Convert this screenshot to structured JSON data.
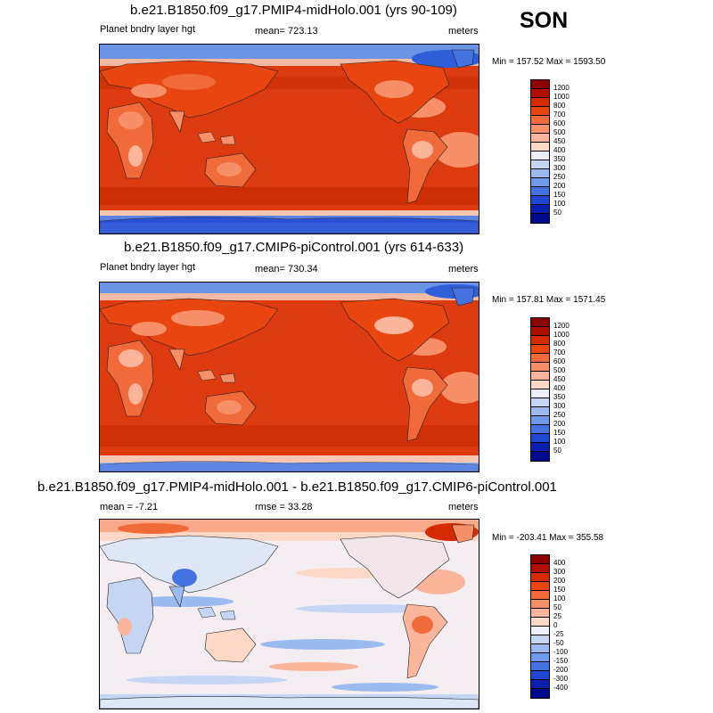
{
  "season": "SON",
  "panels": [
    {
      "title": "b.e21.B1850.f09_g17.PMIP4-midHolo.001 (yrs 90-109)",
      "left_label": "Planet bndry layer hgt",
      "center_label": "mean= 723.13",
      "right_label": "meters",
      "minmax": "Min = 157.52 Max = 1593.50",
      "colorbar": {
        "labels": [
          "1200",
          "1000",
          "800",
          "700",
          "600",
          "500",
          "450",
          "400",
          "350",
          "300",
          "250",
          "200",
          "150",
          "100",
          "50"
        ],
        "colors": [
          "#8b0000",
          "#b00e00",
          "#d62a00",
          "#e84510",
          "#f06a3a",
          "#f79069",
          "#fbb59a",
          "#fdd8c6",
          "#eeeef8",
          "#c4d6f4",
          "#9bbaf0",
          "#6f99ea",
          "#4472e0",
          "#1e47d4",
          "#0a1eb0",
          "#000a8a"
        ]
      }
    },
    {
      "title": "b.e21.B1850.f09_g17.CMIP6-piControl.001 (yrs 614-633)",
      "left_label": "Planet bndry layer hgt",
      "center_label": "mean= 730.34",
      "right_label": "meters",
      "minmax": "Min = 157.81 Max = 1571.45",
      "colorbar": {
        "labels": [
          "1200",
          "1000",
          "800",
          "700",
          "600",
          "500",
          "450",
          "400",
          "350",
          "300",
          "250",
          "200",
          "150",
          "100",
          "50"
        ],
        "colors": [
          "#8b0000",
          "#b00e00",
          "#d62a00",
          "#e84510",
          "#f06a3a",
          "#f79069",
          "#fbb59a",
          "#fdd8c6",
          "#eeeef8",
          "#c4d6f4",
          "#9bbaf0",
          "#6f99ea",
          "#4472e0",
          "#1e47d4",
          "#0a1eb0",
          "#000a8a"
        ]
      }
    },
    {
      "title": "b.e21.B1850.f09_g17.PMIP4-midHolo.001 - b.e21.B1850.f09_g17.CMIP6-piControl.001",
      "left_label": "mean =  -7.21",
      "center_label": "rmse =  33.28",
      "right_label": "meters",
      "minmax": "Min = -203.41 Max = 355.58",
      "colorbar": {
        "labels": [
          "400",
          "300",
          "200",
          "150",
          "100",
          "50",
          "25",
          "0",
          "-25",
          "-50",
          "-100",
          "-150",
          "-200",
          "-300",
          "-400"
        ],
        "colors": [
          "#8b0000",
          "#b00e00",
          "#d62a00",
          "#e84510",
          "#f06a3a",
          "#f79069",
          "#fbb59a",
          "#fdd8c6",
          "#eef0f8",
          "#c4d6f4",
          "#9bbaf0",
          "#6f99ea",
          "#4472e0",
          "#1e47d4",
          "#0a1eb0",
          "#000a8a"
        ]
      }
    }
  ]
}
